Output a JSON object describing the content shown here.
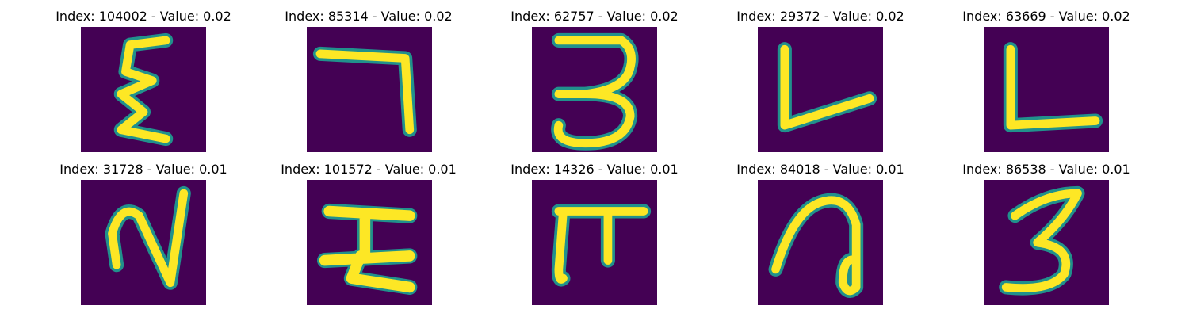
{
  "figure": {
    "colormap": "viridis",
    "background_color": "#440154",
    "stroke_edge_color": "#21918c",
    "stroke_core_color": "#fde725",
    "panels": [
      {
        "title": "Index: 104002 - Value: 0.02",
        "index": 104002,
        "value": 0.02
      },
      {
        "title": "Index: 85314 - Value: 0.02",
        "index": 85314,
        "value": 0.02
      },
      {
        "title": "Index: 62757 - Value: 0.02",
        "index": 62757,
        "value": 0.02
      },
      {
        "title": "Index: 29372 - Value: 0.02",
        "index": 29372,
        "value": 0.02
      },
      {
        "title": "Index: 63669 - Value: 0.02",
        "index": 63669,
        "value": 0.02
      },
      {
        "title": "Index: 31728 - Value: 0.01",
        "index": 31728,
        "value": 0.01
      },
      {
        "title": "Index: 101572 - Value: 0.01",
        "index": 101572,
        "value": 0.01
      },
      {
        "title": "Index: 14326 - Value: 0.01",
        "index": 14326,
        "value": 0.01
      },
      {
        "title": "Index: 84018 - Value: 0.01",
        "index": 84018,
        "value": 0.01
      },
      {
        "title": "Index: 86538 - Value: 0.01",
        "index": 86538,
        "value": 0.01
      }
    ]
  }
}
